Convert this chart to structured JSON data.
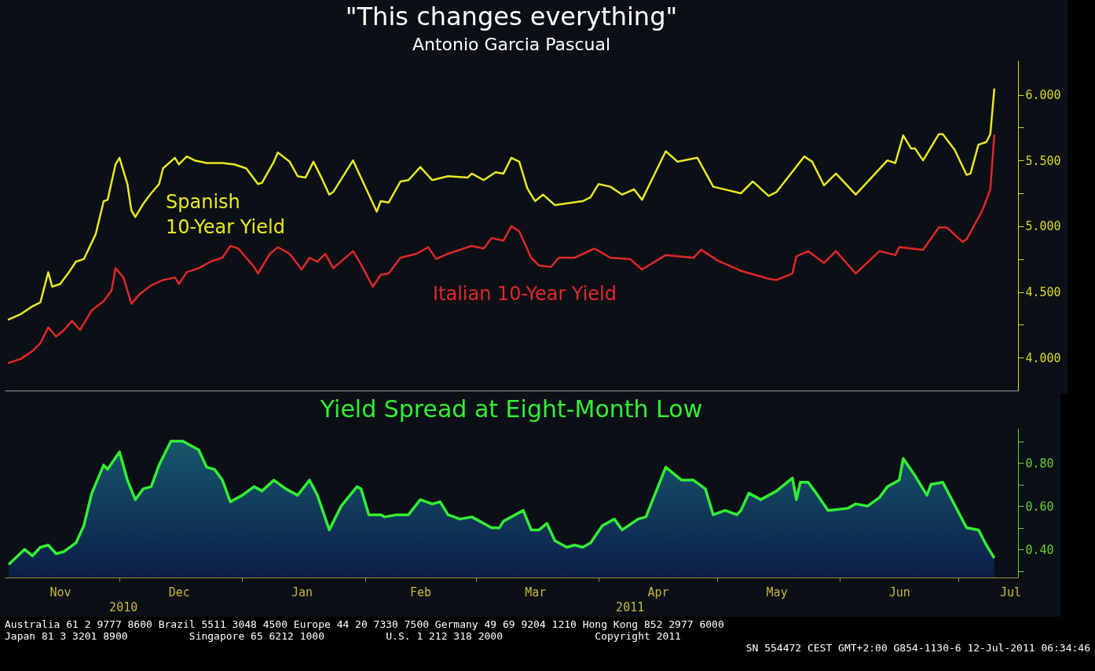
{
  "chart_data": [
    {
      "type": "line",
      "title": "\"This changes everything\"",
      "subtitle": "Antonio Garcia Pascual",
      "xlim": [
        "2010-11-02",
        "2011-07-16"
      ],
      "ylim": [
        3.75,
        6.26
      ],
      "yticks": [
        {
          "value": 4,
          "label": "4.000"
        },
        {
          "value": 4.25,
          "label": null
        },
        {
          "value": 4.5,
          "label": "4.500"
        },
        {
          "value": 4.75,
          "label": null
        },
        {
          "value": 5,
          "label": "5.000"
        },
        {
          "value": 5.25,
          "label": null
        },
        {
          "value": 5.5,
          "label": "5.500"
        },
        {
          "value": 5.75,
          "label": null
        },
        {
          "value": 6,
          "label": "6.000"
        }
      ],
      "tick_labels": "y",
      "series": [
        {
          "name": "Spanish 10-Year Yield",
          "color": "#e8e820",
          "x": [
            "2010-11-03",
            "2010-11-06",
            "2010-11-09",
            "2010-11-11",
            "2010-11-13",
            "2010-11-14",
            "2010-11-16",
            "2010-11-18",
            "2010-11-20",
            "2010-11-22",
            "2010-11-25",
            "2010-11-27",
            "2010-11-28",
            "2010-11-30",
            "2010-12-01",
            "2010-12-03",
            "2010-12-04",
            "2010-12-05",
            "2010-12-07",
            "2010-12-09",
            "2010-12-11",
            "2010-12-12",
            "2010-12-15",
            "2010-12-16",
            "2010-12-18",
            "2010-12-20",
            "2010-12-23",
            "2010-12-27",
            "2010-12-30",
            "2011-01-02",
            "2011-01-05",
            "2011-01-06",
            "2011-01-09",
            "2011-01-10",
            "2011-01-13",
            "2011-01-15",
            "2011-01-17",
            "2011-01-19",
            "2011-01-21",
            "2011-01-23",
            "2011-01-24",
            "2011-01-29",
            "2011-01-31",
            "2011-02-04",
            "2011-02-05",
            "2011-02-07",
            "2011-02-10",
            "2011-02-12",
            "2011-02-15",
            "2011-02-18",
            "2011-02-22",
            "2011-02-27",
            "2011-02-28",
            "2011-03-03",
            "2011-03-06",
            "2011-03-08",
            "2011-03-10",
            "2011-03-12",
            "2011-03-14",
            "2011-03-16",
            "2011-03-18",
            "2011-03-21",
            "2011-03-28",
            "2011-03-30",
            "2011-04-01",
            "2011-04-04",
            "2011-04-07",
            "2011-04-10",
            "2011-04-12",
            "2011-04-18",
            "2011-04-21",
            "2011-04-26",
            "2011-04-30",
            "2011-05-07",
            "2011-05-10",
            "2011-05-14",
            "2011-05-16",
            "2011-05-23",
            "2011-05-25",
            "2011-05-28",
            "2011-05-31",
            "2011-06-05",
            "2011-06-13",
            "2011-06-15",
            "2011-06-17",
            "2011-06-19",
            "2011-06-20",
            "2011-06-22",
            "2011-06-23",
            "2011-06-26",
            "2011-06-27",
            "2011-06-30",
            "2011-07-03",
            "2011-07-04",
            "2011-07-06",
            "2011-07-08",
            "2011-07-09",
            "2011-07-10"
          ],
          "values": [
            4.29,
            4.33,
            4.39,
            4.42,
            4.65,
            4.54,
            4.56,
            4.64,
            4.73,
            4.75,
            4.94,
            5.19,
            5.2,
            5.47,
            5.52,
            5.32,
            5.12,
            5.07,
            5.17,
            5.25,
            5.32,
            5.44,
            5.52,
            5.47,
            5.53,
            5.5,
            5.48,
            5.48,
            5.47,
            5.44,
            5.32,
            5.33,
            5.49,
            5.56,
            5.49,
            5.38,
            5.37,
            5.49,
            5.37,
            5.24,
            5.26,
            5.5,
            5.37,
            5.11,
            5.19,
            5.18,
            5.34,
            5.35,
            5.45,
            5.35,
            5.38,
            5.37,
            5.4,
            5.35,
            5.41,
            5.4,
            5.52,
            5.49,
            5.29,
            5.19,
            5.24,
            5.16,
            5.19,
            5.22,
            5.32,
            5.3,
            5.24,
            5.28,
            5.2,
            5.57,
            5.49,
            5.52,
            5.3,
            5.25,
            5.34,
            5.23,
            5.26,
            5.53,
            5.49,
            5.31,
            5.4,
            5.24,
            5.5,
            5.48,
            5.69,
            5.59,
            5.59,
            5.5,
            5.55,
            5.7,
            5.7,
            5.58,
            5.39,
            5.4,
            5.62,
            5.64,
            5.7,
            6.04
          ]
        },
        {
          "name": "Italian 10-Year Yield",
          "color": "#e02828",
          "x": [
            "2010-11-03",
            "2010-11-06",
            "2010-11-09",
            "2010-11-11",
            "2010-11-13",
            "2010-11-15",
            "2010-11-17",
            "2010-11-19",
            "2010-11-21",
            "2010-11-24",
            "2010-11-27",
            "2010-11-29",
            "2010-11-30",
            "2010-12-02",
            "2010-12-04",
            "2010-12-06",
            "2010-12-09",
            "2010-12-12",
            "2010-12-15",
            "2010-12-16",
            "2010-12-18",
            "2010-12-21",
            "2010-12-24",
            "2010-12-27",
            "2010-12-29",
            "2010-12-31",
            "2011-01-04",
            "2011-01-05",
            "2011-01-08",
            "2011-01-10",
            "2011-01-13",
            "2011-01-16",
            "2011-01-18",
            "2011-01-20",
            "2011-01-22",
            "2011-01-24",
            "2011-01-29",
            "2011-01-31",
            "2011-02-03",
            "2011-02-05",
            "2011-02-07",
            "2011-02-10",
            "2011-02-14",
            "2011-02-17",
            "2011-02-19",
            "2011-02-22",
            "2011-02-28",
            "2011-03-03",
            "2011-03-05",
            "2011-03-08",
            "2011-03-10",
            "2011-03-12",
            "2011-03-15",
            "2011-03-17",
            "2011-03-20",
            "2011-03-22",
            "2011-03-26",
            "2011-03-31",
            "2011-04-04",
            "2011-04-09",
            "2011-04-12",
            "2011-04-18",
            "2011-04-25",
            "2011-04-27",
            "2011-05-01",
            "2011-05-07",
            "2011-05-14",
            "2011-05-16",
            "2011-05-20",
            "2011-05-21",
            "2011-05-24",
            "2011-05-28",
            "2011-05-31",
            "2011-06-05",
            "2011-06-11",
            "2011-06-15",
            "2011-06-16",
            "2011-06-19",
            "2011-06-22",
            "2011-06-26",
            "2011-06-28",
            "2011-07-02",
            "2011-07-03",
            "2011-07-07",
            "2011-07-09",
            "2011-07-10"
          ],
          "values": [
            3.96,
            3.99,
            4.05,
            4.11,
            4.23,
            4.16,
            4.21,
            4.28,
            4.21,
            4.36,
            4.43,
            4.51,
            4.68,
            4.61,
            4.41,
            4.48,
            4.55,
            4.59,
            4.61,
            4.56,
            4.65,
            4.68,
            4.73,
            4.76,
            4.85,
            4.83,
            4.69,
            4.64,
            4.79,
            4.84,
            4.79,
            4.67,
            4.76,
            4.73,
            4.79,
            4.68,
            4.81,
            4.71,
            4.54,
            4.63,
            4.64,
            4.76,
            4.79,
            4.84,
            4.75,
            4.79,
            4.85,
            4.83,
            4.91,
            4.89,
            5.0,
            4.96,
            4.76,
            4.7,
            4.69,
            4.76,
            4.76,
            4.83,
            4.76,
            4.75,
            4.67,
            4.78,
            4.76,
            4.82,
            4.74,
            4.66,
            4.6,
            4.59,
            4.64,
            4.77,
            4.81,
            4.72,
            4.81,
            4.64,
            4.81,
            4.78,
            4.84,
            4.83,
            4.82,
            4.99,
            4.99,
            4.88,
            4.9,
            5.12,
            5.28,
            5.69
          ]
        }
      ]
    },
    {
      "type": "area",
      "title": "Yield Spread at Eight-Month Low",
      "xlim": [
        "2010-11-02",
        "2011-07-16"
      ],
      "xticks": [
        {
          "value": "2010-11-16",
          "label": "Nov"
        },
        {
          "value": "2010-12-01",
          "label": null
        },
        {
          "value": "2010-12-16",
          "label": "Dec"
        },
        {
          "value": "2011-01-01",
          "label": null
        },
        {
          "value": "2011-01-16",
          "label": "Jan"
        },
        {
          "value": "2011-02-01",
          "label": null
        },
        {
          "value": "2011-02-15",
          "label": "Feb"
        },
        {
          "value": "2011-03-01",
          "label": null
        },
        {
          "value": "2011-03-16",
          "label": "Mar"
        },
        {
          "value": "2011-04-01",
          "label": null
        },
        {
          "value": "2011-04-16",
          "label": "Apr"
        },
        {
          "value": "2011-05-01",
          "label": null
        },
        {
          "value": "2011-05-16",
          "label": "May"
        },
        {
          "value": "2011-06-01",
          "label": null
        },
        {
          "value": "2011-06-16",
          "label": "Jun"
        },
        {
          "value": "2011-07-01",
          "label": null
        },
        {
          "value": "2011-07-14",
          "label": "Jul"
        }
      ],
      "ylim": [
        0.27,
        0.96
      ],
      "yticks": [
        {
          "value": 0.3,
          "label": null
        },
        {
          "value": 0.4,
          "label": "0.40"
        },
        {
          "value": 0.5,
          "label": null
        },
        {
          "value": 0.6,
          "label": "0.60"
        },
        {
          "value": 0.7,
          "label": null
        },
        {
          "value": 0.8,
          "label": "0.80"
        },
        {
          "value": 0.9,
          "label": null
        }
      ],
      "series": [
        {
          "color": "#33ee33",
          "x": [
            "2010-11-03",
            "2010-11-07",
            "2010-11-09",
            "2010-11-11",
            "2010-11-13",
            "2010-11-15",
            "2010-11-17",
            "2010-11-20",
            "2010-11-22",
            "2010-11-24",
            "2010-11-27",
            "2010-11-28",
            "2010-12-01",
            "2010-12-03",
            "2010-12-05",
            "2010-12-07",
            "2010-12-09",
            "2010-12-11",
            "2010-12-14",
            "2010-12-17",
            "2010-12-19",
            "2010-12-21",
            "2010-12-23",
            "2010-12-25",
            "2010-12-27",
            "2010-12-29",
            "2011-01-01",
            "2011-01-04",
            "2011-01-06",
            "2011-01-09",
            "2011-01-12",
            "2011-01-15",
            "2011-01-18",
            "2011-01-20",
            "2011-01-23",
            "2011-01-26",
            "2011-01-30",
            "2011-01-31",
            "2011-02-02",
            "2011-02-05",
            "2011-02-06",
            "2011-02-09",
            "2011-02-12",
            "2011-02-15",
            "2011-02-18",
            "2011-02-20",
            "2011-02-22",
            "2011-02-25",
            "2011-02-28",
            "2011-03-02",
            "2011-03-05",
            "2011-03-07",
            "2011-03-08",
            "2011-03-11",
            "2011-03-13",
            "2011-03-15",
            "2011-03-17",
            "2011-03-19",
            "2011-03-21",
            "2011-03-24",
            "2011-03-26",
            "2011-03-28",
            "2011-03-30",
            "2011-04-02",
            "2011-04-05",
            "2011-04-07",
            "2011-04-11",
            "2011-04-13",
            "2011-04-18",
            "2011-04-22",
            "2011-04-25",
            "2011-04-28",
            "2011-04-30",
            "2011-05-03",
            "2011-05-06",
            "2011-05-07",
            "2011-05-09",
            "2011-05-12",
            "2011-05-16",
            "2011-05-20",
            "2011-05-21",
            "2011-05-22",
            "2011-05-24",
            "2011-05-26",
            "2011-05-29",
            "2011-06-03",
            "2011-06-05",
            "2011-06-08",
            "2011-06-11",
            "2011-06-13",
            "2011-06-16",
            "2011-06-17",
            "2011-06-20",
            "2011-06-23",
            "2011-06-24",
            "2011-06-27",
            "2011-06-29",
            "2011-07-03",
            "2011-07-06",
            "2011-07-08",
            "2011-07-10"
          ],
          "values": [
            0.33,
            0.4,
            0.37,
            0.41,
            0.42,
            0.38,
            0.39,
            0.43,
            0.51,
            0.66,
            0.79,
            0.77,
            0.85,
            0.72,
            0.63,
            0.68,
            0.69,
            0.79,
            0.9,
            0.9,
            0.88,
            0.86,
            0.78,
            0.77,
            0.72,
            0.62,
            0.65,
            0.69,
            0.67,
            0.72,
            0.68,
            0.65,
            0.72,
            0.65,
            0.49,
            0.6,
            0.69,
            0.68,
            0.56,
            0.56,
            0.55,
            0.56,
            0.56,
            0.63,
            0.61,
            0.62,
            0.56,
            0.54,
            0.55,
            0.53,
            0.5,
            0.5,
            0.53,
            0.56,
            0.58,
            0.49,
            0.49,
            0.52,
            0.44,
            0.41,
            0.42,
            0.41,
            0.43,
            0.51,
            0.54,
            0.49,
            0.54,
            0.55,
            0.78,
            0.72,
            0.72,
            0.68,
            0.56,
            0.58,
            0.56,
            0.58,
            0.66,
            0.63,
            0.67,
            0.73,
            0.63,
            0.71,
            0.71,
            0.66,
            0.58,
            0.59,
            0.61,
            0.6,
            0.64,
            0.69,
            0.72,
            0.82,
            0.74,
            0.65,
            0.7,
            0.71,
            0.64,
            0.5,
            0.49,
            0.42,
            0.36
          ]
        }
      ],
      "annotations": [
        "2010",
        "2011",
        "Australia 61 2 9777 8600 Brazil 5511 3048 4500 Europe 44 20 7330 7500 Germany 49 69 9204 1210 Hong Kong 852 2977 6000",
        "Japan 81 3 3201 8900          Singapore 65 6212 1000          U.S. 1 212 318 2000               Copyright 2011",
        "SN 554472 CEST GMT+2:00 G854-1130-6 12-Jul-2011 06:34:46"
      ]
    }
  ]
}
